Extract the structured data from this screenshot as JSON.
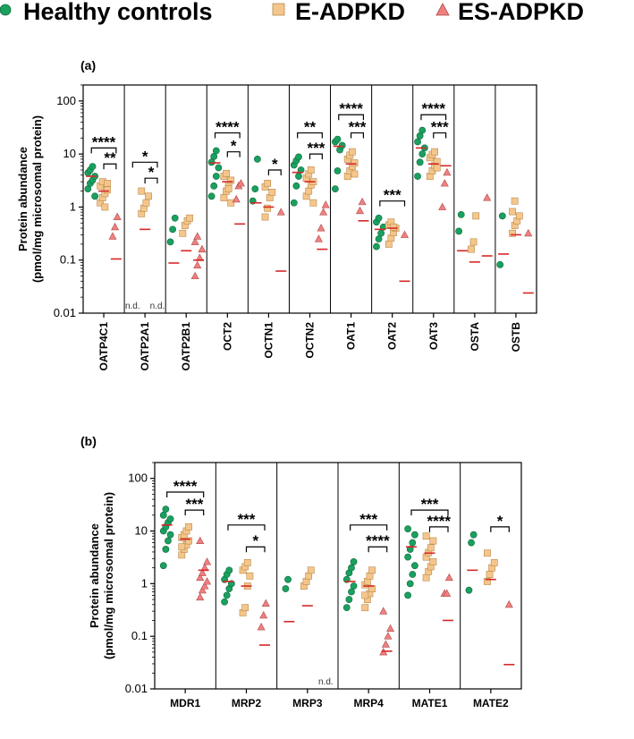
{
  "legend": {
    "items": [
      {
        "label": "Healthy controls",
        "marker": "circle",
        "color": "#1aa05f"
      },
      {
        "label": "E-ADPKD",
        "marker": "square",
        "color": "#f5c68c"
      },
      {
        "label": "ES-ADPKD",
        "marker": "triangle",
        "color": "#f08080"
      }
    ]
  },
  "colors": {
    "healthy": "#1aa05f",
    "e_adpkd": "#f5c68c",
    "es_adpkd": "#f08080",
    "median": "#d62728"
  },
  "chart_data": [
    {
      "type": "scatter",
      "panel": "(a)",
      "ylabel_lines": [
        "Protein abundance",
        "(pmol/mg microsomal protein)"
      ],
      "yscale": "log",
      "ylim": [
        0.01,
        200
      ],
      "yticks": [
        "0.01",
        "0.1",
        "1",
        "10",
        "100"
      ],
      "ytick_values": [
        0.01,
        0.1,
        1,
        10,
        100
      ],
      "categories": [
        "OATP4C1",
        "OATP2A1",
        "OATP2B1",
        "OCT2",
        "OCTN1",
        "OCTN2",
        "OAT1",
        "OAT2",
        "OAT3",
        "OSTA",
        "OSTB"
      ],
      "not_detected_label": "n.d.",
      "groups": [
        {
          "healthy": [
            2.2,
            2.8,
            3.2,
            3.8,
            4.4,
            5.0,
            5.8,
            1.6
          ],
          "e": [
            1.2,
            1.5,
            1.8,
            2.1,
            2.5,
            3.0,
            1.0,
            2.8
          ],
          "es": [
            0.28,
            0.42,
            0.65
          ],
          "med": [
            3.8,
            2.0,
            0.105
          ],
          "nd": []
        },
        {
          "healthy": [],
          "e": [
            0.75,
            0.95,
            1.2,
            1.6,
            2.0
          ],
          "es": [],
          "med": [
            null,
            0.38,
            null
          ],
          "nd": [
            "healthy",
            "es"
          ]
        },
        {
          "healthy": [
            0.22,
            0.38,
            0.62
          ],
          "e": [
            0.32,
            0.45,
            0.55,
            0.62
          ],
          "es": [
            0.05,
            0.08,
            0.11,
            0.16,
            0.22,
            0.28
          ],
          "med": [
            0.088,
            0.15,
            0.1
          ],
          "nd": []
        },
        {
          "healthy": [
            1.6,
            2.5,
            3.8,
            5.5,
            7.0,
            9.0,
            11.5
          ],
          "e": [
            1.5,
            2.0,
            2.6,
            3.2,
            3.8,
            4.3,
            2.2,
            1.2
          ],
          "es": [
            1.4,
            2.5,
            2.8
          ],
          "med": [
            6.8,
            3.0,
            0.48
          ],
          "nd": []
        },
        {
          "healthy": [
            1.3,
            2.2,
            8.0
          ],
          "e": [
            0.65,
            0.95,
            1.5,
            1.9,
            2.4,
            2.8
          ],
          "es": [
            0.8
          ],
          "med": [
            1.2,
            1.0,
            0.062
          ],
          "nd": []
        },
        {
          "healthy": [
            1.2,
            2.5,
            3.8,
            5.0,
            6.2,
            7.5,
            8.8
          ],
          "e": [
            1.6,
            2.0,
            2.6,
            3.0,
            3.5,
            4.2,
            5.0,
            1.2
          ],
          "es": [
            0.25,
            0.4,
            0.8,
            1.1
          ],
          "med": [
            4.5,
            3.0,
            0.16
          ],
          "nd": []
        },
        {
          "healthy": [
            2.2,
            4.8,
            12.0,
            14.5,
            17.0,
            19.0
          ],
          "e": [
            3.8,
            4.8,
            5.8,
            6.8,
            8.0,
            9.5,
            11.0,
            4.2
          ],
          "es": [
            0.85,
            1.25
          ],
          "med": [
            14.0,
            6.5,
            0.55
          ],
          "nd": []
        },
        {
          "healthy": [
            0.18,
            0.25,
            0.32,
            0.42,
            0.52,
            0.62
          ],
          "e": [
            0.2,
            0.26,
            0.33,
            0.4,
            0.46,
            0.52,
            0.42
          ],
          "es": [
            0.3
          ],
          "med": [
            0.38,
            0.4,
            0.04
          ],
          "nd": []
        },
        {
          "healthy": [
            3.8,
            7.0,
            10.0,
            13.0,
            17.0,
            22.0,
            28.0
          ],
          "e": [
            3.8,
            4.8,
            6.0,
            7.2,
            8.5,
            9.8,
            11.0,
            5.5
          ],
          "es": [
            1.0,
            2.8,
            4.5
          ],
          "med": [
            13.0,
            6.5,
            6.0
          ],
          "nd": []
        },
        {
          "healthy": [
            0.35,
            0.72
          ],
          "e": [
            0.16,
            0.22,
            0.68
          ],
          "es": [
            1.5
          ],
          "med": [
            0.15,
            0.092,
            0.12
          ],
          "nd": []
        },
        {
          "healthy": [
            0.082,
            0.68
          ],
          "e": [
            0.32,
            0.45,
            0.55,
            0.68,
            0.82,
            1.3
          ],
          "es": [
            0.32
          ],
          "med": [
            0.13,
            0.3,
            0.024
          ],
          "nd": []
        }
      ],
      "significance": [
        {
          "cat": 0,
          "pair": "h-es",
          "y": 13.0,
          "label": "****"
        },
        {
          "cat": 0,
          "pair": "e-es",
          "y": 6.5,
          "label": "**"
        },
        {
          "cat": 1,
          "pair": "h-es",
          "y": 7.0,
          "label": "*"
        },
        {
          "cat": 1,
          "pair": "e-es",
          "y": 3.5,
          "label": "*"
        },
        {
          "cat": 3,
          "pair": "h-es",
          "y": 25.0,
          "label": "****"
        },
        {
          "cat": 3,
          "pair": "e-es",
          "y": 11.0,
          "label": "*"
        },
        {
          "cat": 4,
          "pair": "e-es",
          "y": 5.0,
          "label": "*"
        },
        {
          "cat": 5,
          "pair": "h-es",
          "y": 25.0,
          "label": "**"
        },
        {
          "cat": 5,
          "pair": "e-es",
          "y": 10.0,
          "label": "***"
        },
        {
          "cat": 6,
          "pair": "h-es",
          "y": 55.0,
          "label": "****"
        },
        {
          "cat": 6,
          "pair": "e-es",
          "y": 25.0,
          "label": "***"
        },
        {
          "cat": 7,
          "pair": "h-es",
          "y": 1.3,
          "label": "***"
        },
        {
          "cat": 8,
          "pair": "h-es",
          "y": 55.0,
          "label": "****"
        },
        {
          "cat": 8,
          "pair": "e-es",
          "y": 25.0,
          "label": "***"
        }
      ]
    },
    {
      "type": "scatter",
      "panel": "(b)",
      "ylabel_lines": [
        "Protein abundance",
        "(pmol/mg microsomal protein)"
      ],
      "yscale": "log",
      "ylim": [
        0.01,
        200
      ],
      "yticks": [
        "0.01",
        "0.1",
        "1",
        "10",
        "100"
      ],
      "ytick_values": [
        0.01,
        0.1,
        1,
        10,
        100
      ],
      "categories": [
        "MDR1",
        "MRP2",
        "MRP3",
        "MRP4",
        "MATE1",
        "MATE2"
      ],
      "not_detected_label": "n.d.",
      "groups": [
        {
          "healthy": [
            2.2,
            4.5,
            6.5,
            8.5,
            10.0,
            12.0,
            14.5,
            17.0,
            20.0,
            26.0
          ],
          "e": [
            3.5,
            4.5,
            5.5,
            6.5,
            7.5,
            8.5,
            10.0,
            12.0,
            5.0
          ],
          "es": [
            0.55,
            0.75,
            0.9,
            1.1,
            1.3,
            1.6,
            2.0,
            2.6,
            6.5
          ],
          "med": [
            13.0,
            7.0,
            1.8
          ],
          "nd": []
        },
        {
          "healthy": [
            0.45,
            0.6,
            0.8,
            1.0,
            1.2,
            1.5,
            1.8
          ],
          "e": [
            0.28,
            0.35,
            0.9,
            1.4,
            1.8,
            2.1,
            2.5
          ],
          "es": [
            0.15,
            0.25,
            0.42
          ],
          "med": [
            1.1,
            0.9,
            0.068
          ],
          "nd": []
        },
        {
          "healthy": [
            0.8,
            1.2
          ],
          "e": [
            0.9,
            1.1,
            1.4,
            1.8
          ],
          "es": [],
          "med": [
            0.19,
            0.38,
            null
          ],
          "nd": [
            "es"
          ]
        },
        {
          "healthy": [
            0.35,
            0.5,
            0.7,
            0.9,
            1.2,
            1.6,
            2.0,
            2.6
          ],
          "e": [
            0.35,
            0.5,
            0.65,
            0.8,
            0.95,
            1.1,
            1.4,
            1.8,
            0.6
          ],
          "es": [
            0.05,
            0.07,
            0.1,
            0.14,
            0.3
          ],
          "med": [
            1.1,
            0.9,
            0.052
          ],
          "nd": []
        },
        {
          "healthy": [
            0.6,
            1.0,
            1.5,
            2.2,
            3.2,
            4.5,
            6.0,
            8.5,
            11.0
          ],
          "e": [
            1.3,
            1.7,
            2.1,
            2.6,
            3.2,
            3.9,
            4.8,
            6.5,
            8.0
          ],
          "es": [
            0.65,
            0.65,
            1.3
          ],
          "med": [
            5.0,
            3.8,
            0.2
          ],
          "nd": []
        },
        {
          "healthy": [
            0.75,
            6.0,
            8.5
          ],
          "e": [
            1.1,
            1.5,
            2.0,
            2.5,
            3.8
          ],
          "es": [
            0.4
          ],
          "med": [
            1.8,
            1.2,
            0.029
          ],
          "nd": []
        }
      ],
      "significance": [
        {
          "cat": 0,
          "pair": "h-es",
          "y": 55.0,
          "label": "****"
        },
        {
          "cat": 0,
          "pair": "e-es",
          "y": 25.0,
          "label": "***"
        },
        {
          "cat": 1,
          "pair": "h-es",
          "y": 13.0,
          "label": "***"
        },
        {
          "cat": 1,
          "pair": "e-es",
          "y": 5.0,
          "label": "*"
        },
        {
          "cat": 3,
          "pair": "h-es",
          "y": 13.0,
          "label": "***"
        },
        {
          "cat": 3,
          "pair": "e-es",
          "y": 5.0,
          "label": "****"
        },
        {
          "cat": 4,
          "pair": "h-es",
          "y": 25.0,
          "label": "***"
        },
        {
          "cat": 4,
          "pair": "e-es",
          "y": 12.0,
          "label": "****"
        },
        {
          "cat": 5,
          "pair": "e-es",
          "y": 12.0,
          "label": "*"
        }
      ]
    }
  ]
}
